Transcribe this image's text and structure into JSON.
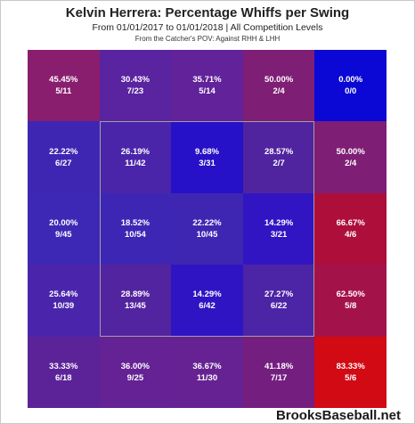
{
  "title": "Kelvin Herrera: Percentage Whiffs per Swing",
  "subtitle": "From 01/01/2017 to 01/01/2018 | All Competition Levels",
  "subtitle2": "From the Catcher's POV:  Against RHH & LHH",
  "watermark": "BrooksBaseball.net",
  "chart_data": {
    "type": "heatmap",
    "title": "Kelvin Herrera: Percentage Whiffs per Swing",
    "rows": 5,
    "cols": 5,
    "strike_zone": "inner 3x3",
    "cells": [
      [
        {
          "pct": "45.45%",
          "frac": "5/11",
          "value": 45.45,
          "color": "#8a1e6e"
        },
        {
          "pct": "30.43%",
          "frac": "7/23",
          "value": 30.43,
          "color": "#5a23a0"
        },
        {
          "pct": "35.71%",
          "frac": "5/14",
          "value": 35.71,
          "color": "#62229a"
        },
        {
          "pct": "50.00%",
          "frac": "2/4",
          "value": 50.0,
          "color": "#7e1e74"
        },
        {
          "pct": "0.00%",
          "frac": "0/0",
          "value": 0.0,
          "color": "#0b08d6"
        }
      ],
      [
        {
          "pct": "22.22%",
          "frac": "6/27",
          "value": 22.22,
          "color": "#3e26b2"
        },
        {
          "pct": "26.19%",
          "frac": "11/42",
          "value": 26.19,
          "color": "#4a25aa"
        },
        {
          "pct": "9.68%",
          "frac": "3/31",
          "value": 9.68,
          "color": "#2611c8"
        },
        {
          "pct": "28.57%",
          "frac": "2/7",
          "value": 28.57,
          "color": "#50249f"
        },
        {
          "pct": "50.00%",
          "frac": "2/4",
          "value": 50.0,
          "color": "#7e1e74"
        }
      ],
      [
        {
          "pct": "20.00%",
          "frac": "9/45",
          "value": 20.0,
          "color": "#3c28b4"
        },
        {
          "pct": "18.52%",
          "frac": "10/54",
          "value": 18.52,
          "color": "#3e26b4"
        },
        {
          "pct": "22.22%",
          "frac": "10/45",
          "value": 22.22,
          "color": "#3f26b2"
        },
        {
          "pct": "14.29%",
          "frac": "3/21",
          "value": 14.29,
          "color": "#3115c2"
        },
        {
          "pct": "66.67%",
          "frac": "4/6",
          "value": 66.67,
          "color": "#ad0f3a"
        }
      ],
      [
        {
          "pct": "25.64%",
          "frac": "10/39",
          "value": 25.64,
          "color": "#4a25ab"
        },
        {
          "pct": "28.89%",
          "frac": "13/45",
          "value": 28.89,
          "color": "#52249f"
        },
        {
          "pct": "14.29%",
          "frac": "6/42",
          "value": 14.29,
          "color": "#2f14c4"
        },
        {
          "pct": "27.27%",
          "frac": "6/22",
          "value": 27.27,
          "color": "#4c24a6"
        },
        {
          "pct": "62.50%",
          "frac": "5/8",
          "value": 62.5,
          "color": "#a4124a"
        }
      ],
      [
        {
          "pct": "33.33%",
          "frac": "6/18",
          "value": 33.33,
          "color": "#5c2398"
        },
        {
          "pct": "36.00%",
          "frac": "9/25",
          "value": 36.0,
          "color": "#642294"
        },
        {
          "pct": "36.67%",
          "frac": "11/30",
          "value": 36.67,
          "color": "#662292"
        },
        {
          "pct": "41.18%",
          "frac": "7/17",
          "value": 41.18,
          "color": "#741f80"
        },
        {
          "pct": "83.33%",
          "frac": "5/6",
          "value": 83.33,
          "color": "#d10a14"
        }
      ]
    ]
  }
}
